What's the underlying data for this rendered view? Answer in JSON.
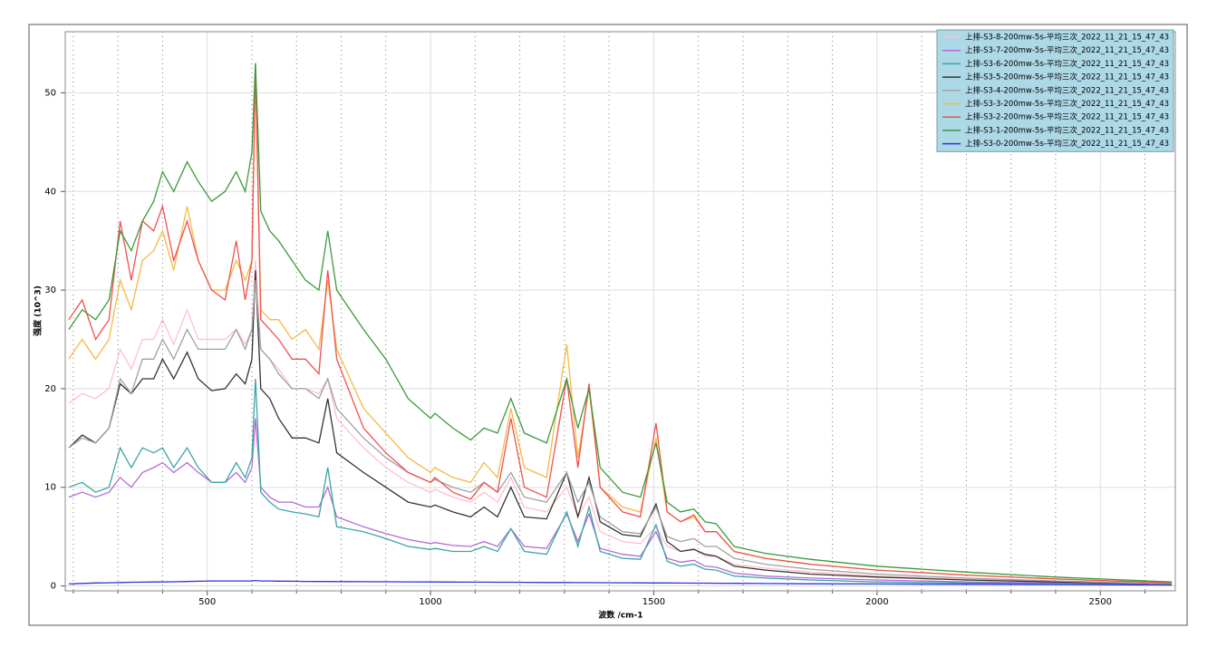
{
  "chart_data": {
    "type": "line",
    "x_label": "波数 /cm-1",
    "y_label": "强度 (10^3)",
    "xlim": [
      182,
      2668
    ],
    "ylim": [
      -0.5,
      56.2
    ],
    "xticks": [
      500,
      1000,
      1500,
      2000,
      2500
    ],
    "xminorticks": [
      200,
      300,
      400,
      600,
      700,
      800,
      900,
      1100,
      1200,
      1300,
      1400,
      1600,
      1700,
      1800,
      1900,
      2100,
      2200,
      2300,
      2400,
      2600
    ],
    "yticks": [
      0,
      10,
      20,
      30,
      40,
      50
    ],
    "grid": true,
    "legend": "upper right",
    "x": [
      190,
      220,
      250,
      280,
      305,
      330,
      355,
      380,
      400,
      425,
      455,
      480,
      510,
      540,
      565,
      585,
      600,
      608,
      620,
      640,
      660,
      690,
      720,
      750,
      770,
      790,
      850,
      900,
      950,
      1000,
      1010,
      1050,
      1090,
      1120,
      1150,
      1180,
      1210,
      1260,
      1305,
      1330,
      1355,
      1380,
      1430,
      1470,
      1505,
      1530,
      1560,
      1590,
      1615,
      1640,
      1680,
      1750,
      1850,
      2000,
      2200,
      2400,
      2660
    ],
    "series": [
      {
        "name": "上排-S3-8-200mw-5s-平均三次_2022_11_21_15_47_43",
        "color": "#ffc0cb",
        "values": [
          18.5,
          19.5,
          19,
          20,
          24,
          22,
          25,
          25,
          27,
          24.5,
          28,
          25,
          25,
          25,
          26,
          24.5,
          26,
          33,
          24,
          23,
          22,
          20,
          20,
          19.5,
          21,
          17,
          14,
          12,
          10.5,
          9.5,
          9.8,
          9,
          8.5,
          9.5,
          8.5,
          11,
          8,
          7.5,
          10,
          7,
          9,
          5.5,
          4.5,
          4.3,
          6,
          4,
          3.5,
          3.8,
          3,
          3,
          2.2,
          1.8,
          1.4,
          1,
          0.7,
          0.5,
          0.2
        ]
      },
      {
        "name": "上排-S3-7-200mw-5s-平均三次_2022_11_21_15_47_43",
        "color": "#b46ad6",
        "values": [
          9,
          9.5,
          9,
          9.5,
          11,
          10,
          11.5,
          12,
          12.5,
          11.5,
          12.5,
          11.5,
          10.5,
          10.5,
          11.5,
          10.5,
          12,
          17,
          10,
          9,
          8.5,
          8.5,
          8,
          8,
          10,
          7,
          6,
          5.3,
          4.7,
          4.3,
          4.4,
          4.1,
          4,
          4.5,
          4,
          5.8,
          4,
          3.8,
          7.3,
          4.5,
          7.3,
          3.8,
          3.2,
          3,
          5.5,
          2.8,
          2.4,
          2.6,
          2,
          1.9,
          1.3,
          1,
          0.8,
          0.6,
          0.4,
          0.3,
          0.1
        ]
      },
      {
        "name": "上排-S3-6-200mw-5s-平均三次_2022_11_21_15_47_43",
        "color": "#3aa6a6",
        "values": [
          10,
          10.5,
          9.5,
          10,
          14,
          12,
          14,
          13.5,
          14,
          12,
          14,
          12,
          10.5,
          10.5,
          12.5,
          11,
          13,
          21,
          9.5,
          8.5,
          7.8,
          7.5,
          7.3,
          7,
          12,
          6,
          5.5,
          4.8,
          4,
          3.7,
          3.8,
          3.5,
          3.5,
          4,
          3.5,
          5.8,
          3.5,
          3.2,
          7.5,
          4,
          8,
          3.5,
          2.8,
          2.7,
          6.2,
          2.5,
          2,
          2.2,
          1.7,
          1.6,
          1,
          0.8,
          0.6,
          0.4,
          0.3,
          0.2,
          0.1
        ]
      },
      {
        "name": "上排-S3-5-200mw-5s-平均三次_2022_11_21_15_47_43",
        "color": "#333333",
        "values": [
          14,
          15.3,
          14.5,
          16,
          20.5,
          19.5,
          21,
          21,
          23,
          21,
          23.7,
          21,
          19.8,
          20,
          21.5,
          20.5,
          23,
          32,
          20,
          19,
          17,
          15,
          15,
          14.5,
          19,
          13.5,
          11.5,
          10,
          8.5,
          8,
          8.2,
          7.5,
          7,
          8,
          7,
          10,
          7,
          6.8,
          11.5,
          7,
          11,
          6.5,
          5.2,
          5,
          8.3,
          4.5,
          3.5,
          3.7,
          3.2,
          3,
          2,
          1.6,
          1.2,
          0.9,
          0.6,
          0.4,
          0.2
        ]
      },
      {
        "name": "上排-S3-4-200mw-5s-平均三次_2022_11_21_15_47_43",
        "color": "#a0a0a0",
        "values": [
          14,
          15,
          14.5,
          16,
          21,
          19.5,
          23,
          23,
          25,
          23,
          26,
          24,
          24,
          24,
          26,
          24,
          26,
          31,
          24,
          23,
          21.5,
          20,
          20,
          19,
          21,
          18,
          15,
          13,
          11.5,
          10.5,
          10.8,
          10,
          9.5,
          10.5,
          9.5,
          11.5,
          9,
          8.5,
          11.5,
          8.5,
          10.5,
          7,
          5.5,
          5.3,
          8,
          5,
          4.5,
          4.8,
          4,
          4,
          2.8,
          2.2,
          1.7,
          1.2,
          0.8,
          0.5,
          0.2
        ]
      },
      {
        "name": "上排-S3-3-200mw-5s-平均三次_2022_11_21_15_47_43",
        "color": "#f5b942",
        "values": [
          23,
          25,
          23,
          25,
          31,
          28,
          33,
          34,
          36,
          32,
          38.5,
          33,
          30,
          30,
          33,
          31,
          33,
          52,
          28,
          27,
          27,
          25,
          26,
          24,
          31,
          24,
          18,
          15.5,
          13,
          11.5,
          12,
          11,
          10.5,
          12.5,
          11,
          18,
          12,
          11,
          24.5,
          13,
          20,
          10,
          8,
          7.5,
          15,
          7.5,
          6.5,
          7,
          5.5,
          5.5,
          3.5,
          2.8,
          2.2,
          1.6,
          1.1,
          0.7,
          0.3
        ]
      },
      {
        "name": "上排-S3-2-200mw-5s-平均三次_2022_11_21_15_47_43",
        "color": "#f05050",
        "values": [
          27,
          29,
          25,
          27,
          37,
          31,
          37,
          36,
          38.5,
          33,
          37,
          33,
          30,
          29,
          35,
          29,
          33,
          53,
          27,
          26,
          25,
          23,
          23,
          21.5,
          32,
          23,
          16,
          13.5,
          11.5,
          10.5,
          11,
          9.5,
          8.8,
          10.5,
          9.5,
          17,
          10,
          9,
          21,
          12,
          20.5,
          10,
          7.5,
          7,
          16.5,
          7.5,
          6.5,
          7.2,
          5.5,
          5.5,
          3.5,
          2.8,
          2.2,
          1.6,
          1.1,
          0.7,
          0.3
        ]
      },
      {
        "name": "上排-S3-1-200mw-5s-平均三次_2022_11_21_15_47_43",
        "color": "#3a9a3a",
        "values": [
          26,
          28,
          27,
          29,
          36,
          34,
          37,
          39,
          42,
          40,
          43,
          41,
          39,
          40,
          42,
          40,
          44,
          53,
          38,
          36,
          35,
          33,
          31,
          30,
          36,
          30,
          26,
          23,
          19,
          17,
          17.5,
          16,
          14.8,
          16,
          15.5,
          19,
          15.5,
          14.5,
          21,
          16,
          20,
          12,
          9.5,
          9,
          14.5,
          8.5,
          7.5,
          7.8,
          6.5,
          6.3,
          4,
          3.3,
          2.7,
          2,
          1.4,
          0.9,
          0.4
        ]
      },
      {
        "name": "上排-S3-0-200mw-5s-平均三次_2022_11_21_15_47_43",
        "color": "#3030e0",
        "values": [
          0.2,
          0.25,
          0.3,
          0.32,
          0.35,
          0.37,
          0.38,
          0.4,
          0.4,
          0.42,
          0.45,
          0.47,
          0.5,
          0.5,
          0.5,
          0.5,
          0.5,
          0.55,
          0.5,
          0.5,
          0.48,
          0.47,
          0.46,
          0.45,
          0.45,
          0.44,
          0.43,
          0.42,
          0.41,
          0.4,
          0.4,
          0.39,
          0.38,
          0.38,
          0.37,
          0.37,
          0.36,
          0.35,
          0.35,
          0.34,
          0.34,
          0.33,
          0.32,
          0.31,
          0.3,
          0.3,
          0.29,
          0.28,
          0.28,
          0.27,
          0.26,
          0.24,
          0.22,
          0.2,
          0.17,
          0.14,
          0.1
        ]
      }
    ]
  }
}
